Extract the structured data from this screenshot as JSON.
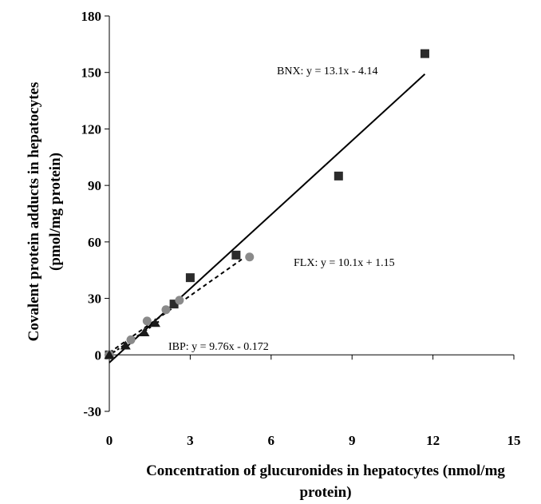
{
  "chart_data": {
    "type": "scatter",
    "title": "",
    "xlabel_lines": [
      "Concentration of glucuronides in hepatocytes (nmol/mg",
      "protein)"
    ],
    "ylabel_lines": [
      "Covalent protein adducts in hepatocytes",
      "(pmol/mg protein)"
    ],
    "xlim": [
      0,
      15
    ],
    "ylim": [
      -30,
      180
    ],
    "x_ticks": [
      0,
      3,
      6,
      9,
      12,
      15
    ],
    "y_ticks": [
      -30,
      0,
      30,
      60,
      90,
      120,
      150,
      180
    ],
    "grid": false,
    "legend": "none",
    "series": [
      {
        "marker": "square",
        "color": "#2b2b2b",
        "points": [
          [
            0,
            0
          ],
          [
            2.4,
            27
          ],
          [
            3.0,
            41
          ],
          [
            4.7,
            53
          ],
          [
            8.5,
            95
          ],
          [
            11.7,
            160
          ]
        ],
        "fit": {
          "slope": 13.1,
          "intercept": -4.14,
          "x_range": [
            0,
            11.7
          ],
          "line_style": "solid"
        },
        "annotation": "BNX: y = 13.1x - 4.14"
      },
      {
        "marker": "circle",
        "color": "#8a8a8a",
        "points": [
          [
            0,
            0
          ],
          [
            0.8,
            8
          ],
          [
            1.4,
            18
          ],
          [
            2.1,
            24
          ],
          [
            2.6,
            29
          ],
          [
            5.2,
            52
          ]
        ],
        "fit": {
          "slope": 10.1,
          "intercept": 1.15,
          "x_range": [
            0,
            5.0
          ],
          "line_style": "dashed"
        },
        "annotation": "FLX: y = 10.1x + 1.15"
      },
      {
        "marker": "triangle",
        "color": "#1a1a1a",
        "points": [
          [
            0,
            0
          ],
          [
            0.6,
            5
          ],
          [
            1.3,
            12
          ],
          [
            1.7,
            17
          ]
        ],
        "fit": {
          "slope": 9.76,
          "intercept": -0.172,
          "x_range": [
            0,
            1.9
          ],
          "line_style": "dotted"
        },
        "annotation": "IBP: y = 9.76x - 0.172"
      }
    ]
  }
}
